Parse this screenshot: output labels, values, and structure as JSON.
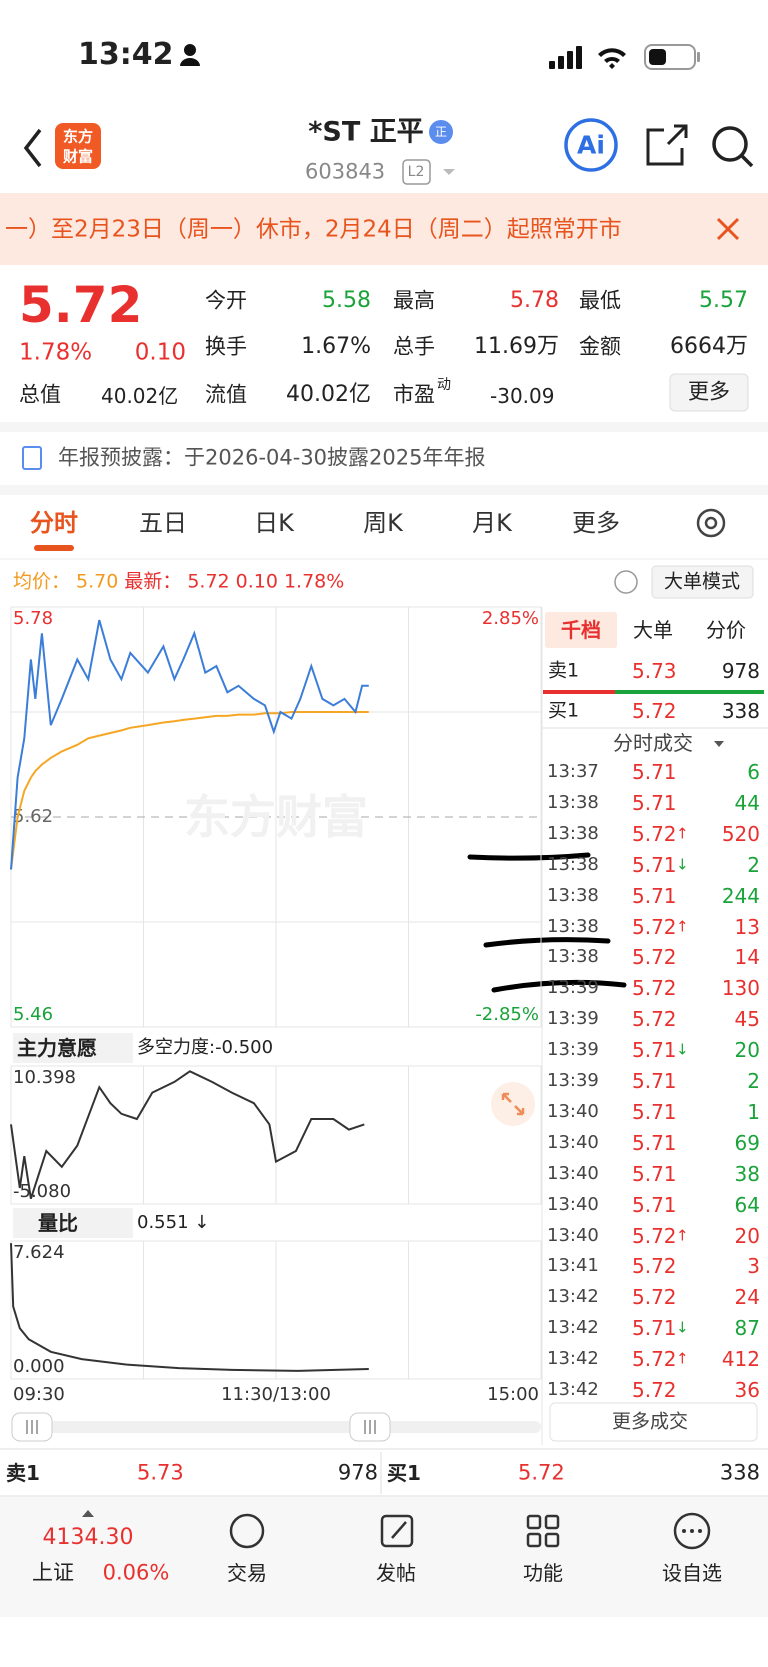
{
  "status_bar": {
    "time": "13:42"
  },
  "header": {
    "logo_top": "东方",
    "logo_bottom": "财富",
    "title": "*ST 正平",
    "badge": "正",
    "code": "603843",
    "level": "L2",
    "ai": "Ai"
  },
  "banner": {
    "text": "一）至2月23日（周一）休市，2月24日（周二）起照常开市"
  },
  "quote": {
    "price": "5.72",
    "change_pct": "1.78%",
    "change": "0.10",
    "stats": [
      {
        "label": "今开",
        "value": "5.58"
      },
      {
        "label": "最高",
        "value": "5.78"
      },
      {
        "label": "最低",
        "value": "5.57"
      },
      {
        "label": "换手",
        "value": "1.67%"
      },
      {
        "label": "总手",
        "value": "11.69万"
      },
      {
        "label": "金额",
        "value": "6664万"
      },
      {
        "label": "总值",
        "value": "40.02亿"
      },
      {
        "label": "流值",
        "value": "40.02亿"
      },
      {
        "label": "市盈",
        "sup": "动",
        "value": "-30.09"
      }
    ],
    "more": "更多"
  },
  "notice": {
    "text": "年报预披露：于2026-04-30披露2025年年报"
  },
  "tabs": [
    "分时",
    "五日",
    "日K",
    "周K",
    "月K",
    "更多"
  ],
  "info": {
    "avg": "5.70",
    "last": "5.72",
    "change": "0.10",
    "change_pct": "1.78%",
    "mode": "大单模式"
  },
  "watermark": "东方财富",
  "indicator": {
    "name": "主力意愿",
    "metric": "多空力度:-0.500"
  },
  "volume_ratio": {
    "name": "量比",
    "value": "0.551 ↓"
  },
  "book": {
    "tabs": [
      "千档",
      "大单",
      "分价"
    ],
    "sell": {
      "label": "卖1",
      "price": "5.73",
      "volume": "978"
    },
    "buy": {
      "label": "买1",
      "price": "5.72",
      "volume": "338"
    }
  },
  "trades": {
    "title": "分时成交",
    "more": "更多成交",
    "rows": [
      {
        "time": "13:37",
        "price": "5.71",
        "volume": "6"
      },
      {
        "time": "13:38",
        "price": "5.71",
        "volume": "44"
      },
      {
        "time": "13:38",
        "price": "5.72",
        "dir": "↑",
        "volume": "520"
      },
      {
        "time": "13:38",
        "price": "5.71",
        "dir": "↓",
        "volume": "2"
      },
      {
        "time": "13:38",
        "price": "5.71",
        "volume": "244"
      },
      {
        "time": "13:38",
        "price": "5.72",
        "dir": "↑",
        "volume": "13"
      },
      {
        "time": "13:38",
        "price": "5.72",
        "volume": "14"
      },
      {
        "time": "13:39",
        "price": "5.72",
        "volume": "130"
      },
      {
        "time": "13:39",
        "price": "5.72",
        "volume": "45"
      },
      {
        "time": "13:39",
        "price": "5.71",
        "dir": "↓",
        "volume": "20"
      },
      {
        "time": "13:39",
        "price": "5.71",
        "volume": "2"
      },
      {
        "time": "13:40",
        "price": "5.71",
        "volume": "1"
      },
      {
        "time": "13:40",
        "price": "5.71",
        "volume": "69"
      },
      {
        "time": "13:40",
        "price": "5.71",
        "volume": "38"
      },
      {
        "time": "13:40",
        "price": "5.71",
        "volume": "64"
      },
      {
        "time": "13:40",
        "price": "5.72",
        "dir": "↑",
        "volume": "20"
      },
      {
        "time": "13:41",
        "price": "5.72",
        "volume": "3"
      },
      {
        "time": "13:42",
        "price": "5.72",
        "volume": "24"
      },
      {
        "time": "13:42",
        "price": "5.71",
        "dir": "↓",
        "volume": "87"
      },
      {
        "time": "13:42",
        "price": "5.72",
        "dir": "↑",
        "volume": "412"
      },
      {
        "time": "13:42",
        "price": "5.72",
        "volume": "36"
      }
    ]
  },
  "nav": {
    "index_value": "4134.30",
    "index_name": "上证",
    "index_change": "0.06%",
    "items": [
      "交易",
      "发帖",
      "功能",
      "设自选"
    ]
  },
  "chart_data": [
    {
      "type": "line",
      "xlim": [
        0,
        240
      ],
      "ylim": [
        5.46,
        5.78
      ],
      "yticks": [
        5.78,
        5.62,
        5.46
      ],
      "y2lim": [
        -2.85,
        2.85
      ],
      "y2ticks": [
        {
          "value": 2.85,
          "label": "2.85%"
        },
        {
          "value": -2.85,
          "label": "-2.85%"
        }
      ],
      "x": [
        0,
        3,
        6,
        9,
        11,
        14,
        18,
        23,
        30,
        35,
        40,
        45,
        50,
        54,
        62,
        69,
        74,
        78,
        83,
        88,
        93,
        98,
        103,
        110,
        115,
        119,
        122,
        127,
        131,
        136,
        141,
        146,
        151,
        156,
        159,
        162
      ],
      "series": [
        {
          "name": "最新：",
          "color": "#3b7dd8",
          "values": [
            5.58,
            5.65,
            5.68,
            5.74,
            5.71,
            5.76,
            5.69,
            5.71,
            5.74,
            5.725,
            5.77,
            5.74,
            5.725,
            5.745,
            5.73,
            5.75,
            5.725,
            5.74,
            5.76,
            5.73,
            5.735,
            5.715,
            5.72,
            5.71,
            5.705,
            5.685,
            5.7,
            5.695,
            5.71,
            5.735,
            5.71,
            5.705,
            5.71,
            5.7,
            5.72,
            5.72
          ]
        },
        {
          "name": "均价：",
          "color": "#f5a623",
          "values": [
            5.58,
            5.62,
            5.64,
            5.65,
            5.655,
            5.66,
            5.665,
            5.67,
            5.675,
            5.68,
            5.682,
            5.684,
            5.686,
            5.688,
            5.69,
            5.692,
            5.693,
            5.694,
            5.695,
            5.696,
            5.697,
            5.697,
            5.698,
            5.698,
            5.699,
            5.699,
            5.699,
            5.7,
            5.7,
            5.7,
            5.7,
            5.7,
            5.7,
            5.7,
            5.7,
            5.7
          ]
        }
      ]
    },
    {
      "type": "line",
      "xlim": [
        0,
        240
      ],
      "ylim": [
        -5.08,
        10.398
      ],
      "yticks": [
        10.398,
        {
          "value": -5.08,
          "label": "-5.080"
        }
      ],
      "x": [
        0,
        4,
        6,
        9,
        16,
        23,
        30,
        40,
        45,
        50,
        57,
        64,
        74,
        81,
        91,
        100,
        110,
        117,
        120,
        129,
        136,
        146,
        153,
        160
      ],
      "series": [
        {
          "color": "#333333",
          "values": [
            3.85,
            -3.29,
            0.28,
            -4.48,
            0.87,
            -0.91,
            1.47,
            8.02,
            6.23,
            5.04,
            4.45,
            7.42,
            8.61,
            9.8,
            8.61,
            7.42,
            6.23,
            3.85,
            -0.32,
            0.87,
            4.45,
            4.45,
            3.26,
            3.85
          ]
        }
      ]
    },
    {
      "type": "line",
      "xlim": [
        0,
        240
      ],
      "ylim": [
        0,
        7.624
      ],
      "yticks": [
        7.624,
        {
          "value": 0,
          "label": "0.000"
        }
      ],
      "xticks": [
        {
          "value": 0,
          "label": "09:30"
        },
        {
          "value": 120,
          "label": "11:30/13:00"
        },
        {
          "value": 240,
          "label": "15:00"
        }
      ],
      "x": [
        0,
        1,
        4,
        8,
        18,
        32,
        52,
        76,
        100,
        130,
        162
      ],
      "series": [
        {
          "color": "#333333",
          "values": [
            7.5,
            4.0,
            2.8,
            2.2,
            1.5,
            1.1,
            0.8,
            0.6,
            0.5,
            0.45,
            0.55
          ]
        }
      ]
    }
  ]
}
